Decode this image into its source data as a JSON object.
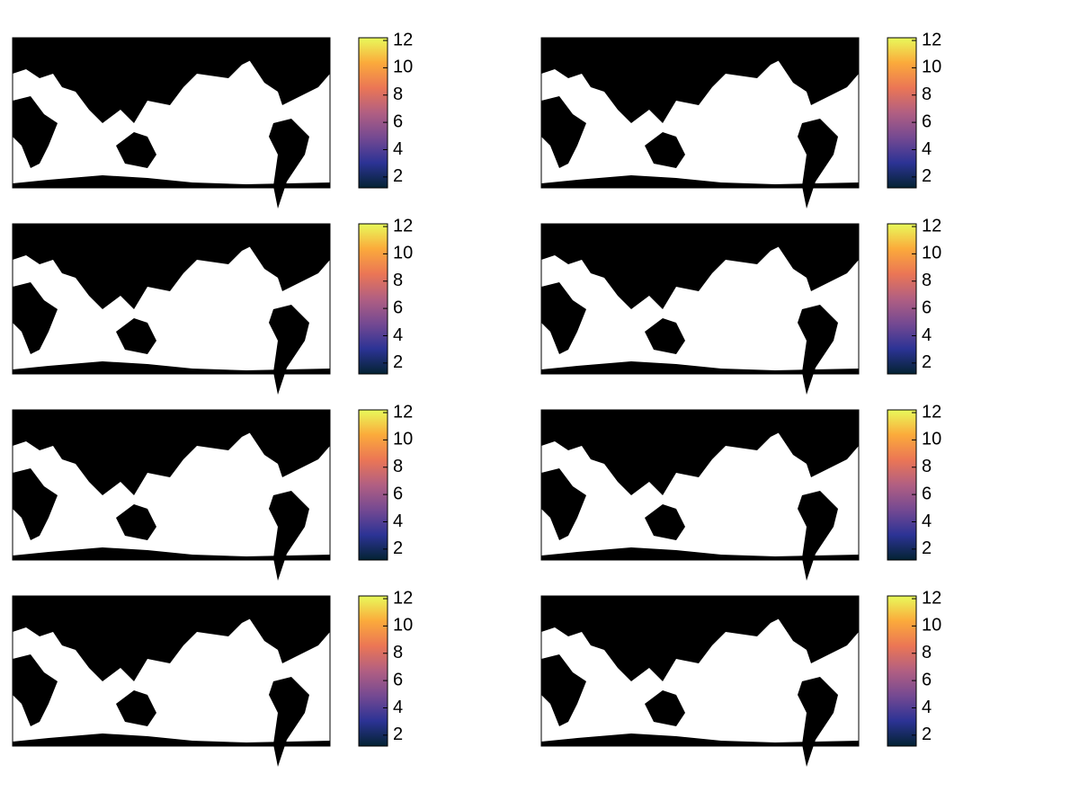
{
  "chart_data": [
    {
      "type": "map",
      "clim": [
        1.2,
        12.2
      ],
      "cticks": [
        2,
        4,
        6,
        8,
        10,
        12
      ],
      "colormap": [
        "#042333",
        "#2c3395",
        "#744992",
        "#b15f82",
        "#eb7655",
        "#fbaa3b",
        "#e8fa5b"
      ]
    },
    {
      "type": "map",
      "clim": [
        1.2,
        12.2
      ],
      "cticks": [
        2,
        4,
        6,
        8,
        10,
        12
      ],
      "colormap": [
        "#042333",
        "#2c3395",
        "#744992",
        "#b15f82",
        "#eb7655",
        "#fbaa3b",
        "#e8fa5b"
      ]
    },
    {
      "type": "map",
      "clim": [
        1.2,
        12.2
      ],
      "cticks": [
        2,
        4,
        6,
        8,
        10,
        12
      ],
      "colormap": [
        "#042333",
        "#2c3395",
        "#744992",
        "#b15f82",
        "#eb7655",
        "#fbaa3b",
        "#e8fa5b"
      ]
    },
    {
      "type": "map",
      "clim": [
        1.2,
        12.2
      ],
      "cticks": [
        2,
        4,
        6,
        8,
        10,
        12
      ],
      "colormap": [
        "#042333",
        "#2c3395",
        "#744992",
        "#b15f82",
        "#eb7655",
        "#fbaa3b",
        "#e8fa5b"
      ]
    },
    {
      "type": "map",
      "clim": [
        1.2,
        12.2
      ],
      "cticks": [
        2,
        4,
        6,
        8,
        10,
        12
      ],
      "colormap": [
        "#042333",
        "#2c3395",
        "#744992",
        "#b15f82",
        "#eb7655",
        "#fbaa3b",
        "#e8fa5b"
      ]
    },
    {
      "type": "map",
      "clim": [
        1.2,
        12.2
      ],
      "cticks": [
        2,
        4,
        6,
        8,
        10,
        12
      ],
      "colormap": [
        "#042333",
        "#2c3395",
        "#744992",
        "#b15f82",
        "#eb7655",
        "#fbaa3b",
        "#e8fa5b"
      ]
    },
    {
      "type": "map",
      "clim": [
        1.2,
        12.2
      ],
      "cticks": [
        2,
        4,
        6,
        8,
        10,
        12
      ],
      "colormap": [
        "#042333",
        "#2c3395",
        "#744992",
        "#b15f82",
        "#eb7655",
        "#fbaa3b",
        "#e8fa5b"
      ]
    },
    {
      "type": "map",
      "clim": [
        1.2,
        12.2
      ],
      "cticks": [
        2,
        4,
        6,
        8,
        10,
        12
      ],
      "colormap": [
        "#042333",
        "#2c3395",
        "#744992",
        "#b15f82",
        "#eb7655",
        "#fbaa3b",
        "#e8fa5b"
      ]
    }
  ]
}
